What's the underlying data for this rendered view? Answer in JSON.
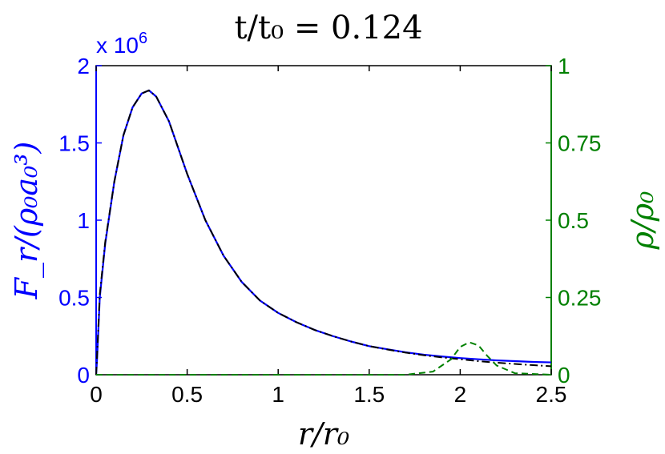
{
  "chart_data": {
    "type": "line",
    "title": "t/t₀ = 0.124",
    "xlabel": "r/r₀",
    "ylabel_left": "F_r/(ρ₀a₀³)",
    "ylabel_right": "ρ/ρ₀",
    "left_axis_multiplier": "x 10",
    "left_axis_exponent": "6",
    "xlim": [
      0,
      2.5
    ],
    "ylim_left": [
      0,
      2000000
    ],
    "ylim_right": [
      0,
      1
    ],
    "x_ticks": [
      "0",
      "0.5",
      "1",
      "1.5",
      "2",
      "2.5"
    ],
    "y_left_ticks": [
      "0",
      "0.5",
      "1",
      "1.5",
      "2"
    ],
    "y_right_ticks": [
      "0",
      "0.25",
      "0.5",
      "0.75",
      "1"
    ],
    "colors": {
      "left_axis": "#0000ff",
      "right_axis": "#008000",
      "flux_black": "#000000",
      "flux_blue": "#0000ff",
      "density": "#008000"
    },
    "series": [
      {
        "axis": "left",
        "style": "solid-blue",
        "x": [
          0,
          0.005,
          0.02,
          0.05,
          0.1,
          0.15,
          0.2,
          0.25,
          0.29,
          0.33,
          0.4,
          0.5,
          0.6,
          0.7,
          0.8,
          0.9,
          1.0,
          1.1,
          1.2,
          1.3,
          1.4,
          1.5,
          1.6,
          1.7,
          1.8,
          1.9,
          2.0,
          2.1,
          2.2,
          2.3,
          2.4,
          2.5
        ],
        "y": [
          0,
          100000,
          500000,
          850000,
          1250000,
          1550000,
          1730000,
          1820000,
          1840000,
          1800000,
          1640000,
          1300000,
          1000000,
          770000,
          600000,
          480000,
          400000,
          340000,
          290000,
          250000,
          215000,
          185000,
          165000,
          145000,
          130000,
          118000,
          108000,
          100000,
          93000,
          88000,
          83000,
          80000
        ]
      },
      {
        "axis": "left",
        "style": "dashdot-black",
        "x": [
          0,
          0.005,
          0.02,
          0.05,
          0.1,
          0.15,
          0.2,
          0.25,
          0.29,
          0.33,
          0.4,
          0.5,
          0.6,
          0.7,
          0.8,
          0.9,
          1.0,
          1.1,
          1.2,
          1.3,
          1.4,
          1.5,
          1.6,
          1.7,
          1.8,
          1.9,
          2.0,
          2.1,
          2.2,
          2.3,
          2.4,
          2.5
        ],
        "y": [
          0,
          120000,
          520000,
          860000,
          1250000,
          1550000,
          1730000,
          1820000,
          1840000,
          1800000,
          1640000,
          1300000,
          1000000,
          770000,
          600000,
          480000,
          400000,
          340000,
          290000,
          250000,
          215000,
          185000,
          163000,
          143000,
          126000,
          112000,
          100000,
          88000,
          78000,
          70000,
          62000,
          55000
        ]
      },
      {
        "axis": "right",
        "style": "dashed-green",
        "x": [
          0,
          1.7,
          1.85,
          1.95,
          2.0,
          2.05,
          2.1,
          2.15,
          2.2,
          2.3,
          2.5
        ],
        "y": [
          0,
          0,
          0.01,
          0.05,
          0.09,
          0.105,
          0.095,
          0.06,
          0.03,
          0.005,
          0
        ]
      }
    ]
  }
}
